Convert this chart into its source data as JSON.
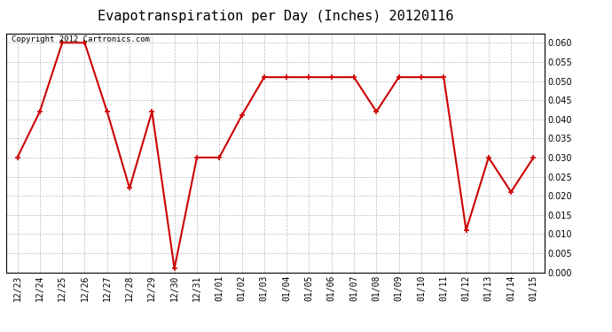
{
  "title": "Evapotranspiration per Day (Inches) 20120116",
  "copyright_text": "Copyright 2012 Cartronics.com",
  "x_labels": [
    "12/23",
    "12/24",
    "12/25",
    "12/26",
    "12/27",
    "12/28",
    "12/29",
    "12/30",
    "12/31",
    "01/01",
    "01/02",
    "01/03",
    "01/04",
    "01/05",
    "01/06",
    "01/07",
    "01/08",
    "01/09",
    "01/10",
    "01/11",
    "01/12",
    "01/13",
    "01/14",
    "01/15"
  ],
  "y_values": [
    0.03,
    0.042,
    0.06,
    0.06,
    0.042,
    0.022,
    0.042,
    0.001,
    0.03,
    0.03,
    0.041,
    0.051,
    0.051,
    0.051,
    0.051,
    0.051,
    0.042,
    0.051,
    0.051,
    0.051,
    0.011,
    0.03,
    0.021,
    0.03
  ],
  "line_color": "#cc0000",
  "marker": "+",
  "marker_size": 5,
  "marker_color": "#cc0000",
  "background_color": "#ffffff",
  "grid_color": "#bbbbbb",
  "ylim": [
    0.0,
    0.0625
  ],
  "yticks": [
    0.0,
    0.005,
    0.01,
    0.015,
    0.02,
    0.025,
    0.03,
    0.035,
    0.04,
    0.045,
    0.05,
    0.055,
    0.06
  ],
  "title_fontsize": 11,
  "copyright_fontsize": 6.5,
  "tick_fontsize": 7,
  "line_width": 1.5
}
